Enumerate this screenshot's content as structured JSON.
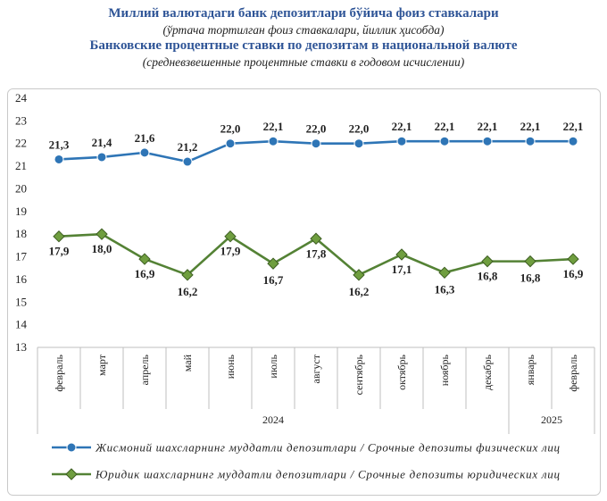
{
  "header": {
    "title_uz": "Миллий валютадаги банк депозитлари бўйича фоиз ставкалари",
    "subtitle_uz": "(ўртача тортилган фоиз ставкалари, йиллик ҳисобда)",
    "title_ru": "Банковские процентные ставки по депозитам в национальной валюте",
    "subtitle_ru": "(средневзвешенные процентные ставки в годовом исчислении)"
  },
  "chart_data": {
    "type": "line",
    "categories": [
      "февраль",
      "март",
      "апрель",
      "май",
      "июнь",
      "июль",
      "август",
      "сентябрь",
      "октябрь",
      "ноябрь",
      "декабрь",
      "январь",
      "февраль"
    ],
    "year_groups": [
      {
        "label": "2024",
        "from": 0,
        "to": 10
      },
      {
        "label": "2025",
        "from": 11,
        "to": 12
      }
    ],
    "ylim": [
      13,
      24
    ],
    "yticks": [
      13,
      14,
      15,
      16,
      17,
      18,
      19,
      20,
      21,
      22,
      23,
      24
    ],
    "grid": false,
    "legend_position": "bottom",
    "series": [
      {
        "name": "Жисмоний шахсларнинг муддатли депозитлари / Срочные депозиты физических лиц",
        "color": "#2e75b6",
        "marker": "circle",
        "values": [
          21.3,
          21.4,
          21.6,
          21.2,
          22.0,
          22.1,
          22.0,
          22.0,
          22.1,
          22.1,
          22.1,
          22.1,
          22.1
        ],
        "labels": [
          "21,3",
          "21,4",
          "21,6",
          "21,2",
          "22,0",
          "22,1",
          "22,0",
          "22,0",
          "22,1",
          "22,1",
          "22,1",
          "22,1",
          "22,1"
        ]
      },
      {
        "name": "Юридик шахсларнинг муддатли депозитлари / Срочные депозиты юридических лиц",
        "color": "#548235",
        "marker": "diamond",
        "values": [
          17.9,
          18.0,
          16.9,
          16.2,
          17.9,
          16.7,
          17.8,
          16.2,
          17.1,
          16.3,
          16.8,
          16.8,
          16.9
        ],
        "labels": [
          "17,9",
          "18,0",
          "16,9",
          "16,2",
          "17,9",
          "16,7",
          "17,8",
          "16,2",
          "17,1",
          "16,3",
          "16,8",
          "16,8",
          "16,9"
        ]
      }
    ]
  }
}
